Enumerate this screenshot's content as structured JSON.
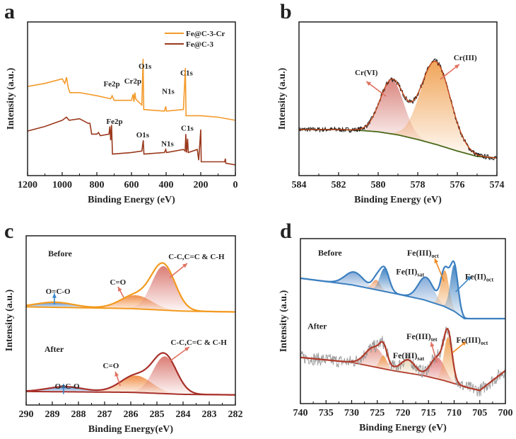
{
  "chart_data": [
    {
      "panel": "a",
      "type": "line",
      "xlabel": "Binding Energy (eV)",
      "ylabel": "Intensity (a.u.)",
      "xlim": [
        1200,
        0
      ],
      "ylim": [
        0,
        100
      ],
      "xticks": [
        1200,
        1000,
        800,
        600,
        400,
        200,
        0
      ],
      "grid": false,
      "legend": {
        "placement": "top-right"
      },
      "series": [
        {
          "name": "Fe@C-3-Cr",
          "color": "#f39a2a",
          "points": [
            [
              1200,
              58
            ],
            [
              1100,
              60
            ],
            [
              1000,
              63
            ],
            [
              985,
              60
            ],
            [
              975,
              64
            ],
            [
              965,
              57
            ],
            [
              955,
              54
            ],
            [
              900,
              54
            ],
            [
              800,
              52
            ],
            [
              720,
              50
            ],
            [
              712,
              52
            ],
            [
              700,
              49
            ],
            [
              600,
              49
            ],
            [
              590,
              53
            ],
            [
              586,
              48
            ],
            [
              580,
              54
            ],
            [
              576,
              50
            ],
            [
              560,
              48
            ],
            [
              540,
              46
            ],
            [
              533,
              76
            ],
            [
              529,
              43
            ],
            [
              410,
              42
            ],
            [
              402,
              45
            ],
            [
              398,
              42
            ],
            [
              300,
              43
            ],
            [
              289,
              70
            ],
            [
              285,
              39
            ],
            [
              200,
              39
            ],
            [
              100,
              38
            ],
            [
              0,
              36
            ]
          ]
        },
        {
          "name": "Fe@C-3",
          "color": "#9b3a1e",
          "points": [
            [
              1200,
              29
            ],
            [
              1100,
              32
            ],
            [
              1000,
              36
            ],
            [
              975,
              38
            ],
            [
              960,
              36
            ],
            [
              900,
              37
            ],
            [
              850,
              34
            ],
            [
              840,
              34
            ],
            [
              830,
              27
            ],
            [
              800,
              27
            ],
            [
              790,
              28
            ],
            [
              780,
              26
            ],
            [
              730,
              27
            ],
            [
              725,
              32
            ],
            [
              720,
              23
            ],
            [
              715,
              33
            ],
            [
              710,
              14
            ],
            [
              600,
              15
            ],
            [
              540,
              16
            ],
            [
              532,
              23
            ],
            [
              528,
              14
            ],
            [
              410,
              15
            ],
            [
              402,
              17
            ],
            [
              398,
              15
            ],
            [
              300,
              17
            ],
            [
              290,
              16
            ],
            [
              286,
              27
            ],
            [
              282,
              15
            ],
            [
              276,
              24
            ],
            [
              272,
              15
            ],
            [
              220,
              17
            ],
            [
              212,
              10
            ],
            [
              200,
              30
            ],
            [
              197,
              9
            ],
            [
              100,
              9
            ],
            [
              62,
              9
            ],
            [
              58,
              11
            ],
            [
              55,
              8
            ],
            [
              0,
              7
            ]
          ]
        }
      ],
      "annotations": [
        {
          "text": "Fe2p",
          "x": 714,
          "y": 60
        },
        {
          "text": "Cr2p",
          "x": 592,
          "y": 61.7
        },
        {
          "text": "O1s",
          "x": 522,
          "y": 71.4
        },
        {
          "text": "N1s",
          "x": 388,
          "y": 55
        },
        {
          "text": "C1s",
          "x": 282,
          "y": 67
        },
        {
          "text": "Fe2p",
          "x": 698,
          "y": 35.5
        },
        {
          "text": "O1s",
          "x": 535,
          "y": 26.7
        },
        {
          "text": "N1s",
          "x": 392,
          "y": 21
        },
        {
          "text": "C1s",
          "x": 278,
          "y": 31
        }
      ]
    },
    {
      "panel": "b",
      "type": "area",
      "xlabel": "Binding Energy (eV)",
      "ylabel": "Intensity (a.u.)",
      "xlim": [
        584,
        574
      ],
      "ylim": [
        0,
        100
      ],
      "xticks": [
        584,
        582,
        580,
        578,
        576,
        574
      ],
      "grid": false,
      "curves": [
        {
          "envelope_color": "#c0461c",
          "raw_color": "#111111",
          "raw_noise": 1.6,
          "baseline_color": "#4a6a1a",
          "baseline": [
            [
              584,
              30
            ],
            [
              582,
              30
            ],
            [
              581,
              29.5
            ],
            [
              580,
              28.5
            ],
            [
              579,
              26.5
            ],
            [
              578,
              23.5
            ],
            [
              577,
              20
            ],
            [
              576,
              16
            ],
            [
              575,
              12.5
            ],
            [
              574,
              11.5
            ]
          ],
          "components": [
            {
              "center": 579.3,
              "height": 35,
              "sigma": 0.6,
              "color": "#d9827a"
            },
            {
              "center": 577.1,
              "height": 54,
              "sigma": 0.75,
              "color": "#f0a050"
            }
          ]
        }
      ],
      "annotations": [
        {
          "text": "Cr(VI)",
          "x": 580.6,
          "y": 67.3,
          "arrow": {
            "from": [
              579.6,
              51.6
            ],
            "to": [
              580.6,
              61.3
            ],
            "color": "#e07060"
          }
        },
        {
          "text": "Cr(III)",
          "x": 575.6,
          "y": 77,
          "arrow": {
            "from": [
              576.86,
              62.7
            ],
            "to": [
              575.9,
              72.4
            ],
            "color": "#e07060"
          }
        }
      ]
    },
    {
      "panel": "c",
      "type": "area",
      "xlabel": "Binding Energy(eV)",
      "ylabel": "Intensity (a.u.)",
      "xlim": [
        290,
        282
      ],
      "ylim": [
        0,
        100
      ],
      "xticks": [
        290,
        289,
        288,
        287,
        286,
        285,
        284,
        283,
        282
      ],
      "grid": false,
      "curves": [
        {
          "label": "Before",
          "label_pos": [
            289.16,
            89.5
          ],
          "envelope_color": "#f39a1e",
          "baseline_color": "#f39a1e",
          "baseline": [
            [
              290,
              58
            ],
            [
              286,
              57
            ],
            [
              284,
              55.5
            ],
            [
              282,
              55
            ]
          ],
          "components": [
            {
              "center": 288.9,
              "height": 3,
              "sigma": 0.7,
              "color": "#4f86c6"
            },
            {
              "center": 285.8,
              "height": 8,
              "sigma": 0.6,
              "color": "#f08a40"
            },
            {
              "center": 284.75,
              "height": 26,
              "sigma": 0.45,
              "color": "#d9766e"
            }
          ]
        },
        {
          "label": "After",
          "label_pos": [
            289.3,
            33
          ],
          "envelope_color": "#a8302a",
          "baseline_color": "#a8302a",
          "baseline": [
            [
              290,
              8
            ],
            [
              286,
              7.5
            ],
            [
              284,
              6.3
            ],
            [
              282,
              6
            ]
          ],
          "components": [
            {
              "center": 288.5,
              "height": 3,
              "sigma": 0.7,
              "color": "#4f86c6"
            },
            {
              "center": 285.8,
              "height": 10,
              "sigma": 0.6,
              "color": "#f08a40"
            },
            {
              "center": 284.7,
              "height": 22,
              "sigma": 0.45,
              "color": "#d9766e"
            }
          ]
        }
      ],
      "annotations": [
        {
          "text": "C-C,C=C & C-H",
          "x": 283.49,
          "y": 87.9,
          "arrow": {
            "from": [
              284.51,
              75.3
            ],
            "to": [
              283.84,
              83.7
            ],
            "color": "#e07060"
          }
        },
        {
          "text": "C=O",
          "x": 286.49,
          "y": 72.8,
          "arrow": {
            "from": [
              286.27,
              63.6
            ],
            "to": [
              286.49,
              69.9
            ],
            "color": "#e07060"
          }
        },
        {
          "text": "O=C-O",
          "x": 288.78,
          "y": 67.4,
          "arrow": {
            "from": [
              288.92,
              59.4
            ],
            "to": [
              288.92,
              66
            ],
            "color": "#3a86c8"
          }
        },
        {
          "text": "C-C,C=C & C-H",
          "x": 283.4,
          "y": 37.2,
          "arrow": {
            "from": [
              284.51,
              25.9
            ],
            "to": [
              283.76,
              34.3
            ],
            "color": "#e07060"
          }
        },
        {
          "text": "C=O",
          "x": 286.76,
          "y": 23.4,
          "arrow": {
            "from": [
              286.4,
              11.3
            ],
            "to": [
              286.59,
              19.7
            ],
            "color": "#e07060"
          }
        },
        {
          "text": "O=C-O",
          "x": 288.43,
          "y": 11.3,
          "arrow": {
            "from": [
              288.57,
              6.5
            ],
            "to": [
              288.57,
              12.5
            ],
            "color": "#3a86c8"
          }
        }
      ]
    },
    {
      "panel": "d",
      "type": "area",
      "xlabel": "Binding Energy (eV)",
      "ylabel": "Intensity (a.u.)",
      "xlim": [
        740,
        700
      ],
      "ylim": [
        0,
        100
      ],
      "xticks": [
        740,
        735,
        730,
        725,
        720,
        715,
        710,
        705,
        700
      ],
      "grid": false,
      "curves": [
        {
          "label": "Before",
          "label_pos": [
            736.55,
            91.4
          ],
          "envelope_color": "#3b7fc0",
          "baseline_color": "#3b7fc0",
          "baseline": [
            [
              740,
              76
            ],
            [
              730,
              72
            ],
            [
              722,
              67
            ],
            [
              716,
              63
            ],
            [
              712,
              59
            ],
            [
              710,
              56
            ],
            [
              708,
              51.5
            ],
            [
              700,
              51.5
            ]
          ],
          "components": [
            {
              "center": 729.5,
              "height": 8,
              "sigma": 1.8,
              "color": "#7fa6d6"
            },
            {
              "center": 725.2,
              "height": 6,
              "sigma": 0.8,
              "color": "#f0a070"
            },
            {
              "center": 723.6,
              "height": 14,
              "sigma": 0.9,
              "color": "#3b7fc0"
            },
            {
              "center": 715.5,
              "height": 14,
              "sigma": 1.5,
              "color": "#7fa6d6"
            },
            {
              "center": 711.8,
              "height": 22,
              "sigma": 0.8,
              "color": "#f0a050"
            },
            {
              "center": 710.0,
              "height": 28,
              "sigma": 0.75,
              "color": "#3b7fc0"
            }
          ]
        },
        {
          "label": "After",
          "label_pos": [
            738.6,
            47
          ],
          "envelope_color": "#b03a2a",
          "baseline_color": "#b03a2a",
          "raw_color": "#9a9a9a",
          "raw_noise": 4,
          "baseline": [
            [
              740,
              28
            ],
            [
              730,
              25
            ],
            [
              722,
              20
            ],
            [
              716,
              17
            ],
            [
              712,
              14
            ],
            [
              707,
              9.4
            ],
            [
              705,
              8
            ],
            [
              700,
              20
            ]
          ],
          "components": [
            {
              "center": 725.5,
              "height": 12,
              "sigma": 1.8,
              "color": "#e59a8e"
            },
            {
              "center": 723.8,
              "height": 8,
              "sigma": 0.7,
              "color": "#f0a050"
            },
            {
              "center": 719,
              "height": 8,
              "sigma": 1.4,
              "color": "#e8d6b8"
            },
            {
              "center": 713.2,
              "height": 13,
              "sigma": 1.4,
              "color": "#e07a7a"
            },
            {
              "center": 711.2,
              "height": 27,
              "sigma": 0.8,
              "color": "#f0a050"
            }
          ]
        }
      ],
      "annotations": [
        {
          "text": "Fe(III)",
          "sub": "oct",
          "x": 716.1,
          "y": 91.4,
          "arrow": {
            "from": [
              712,
              74.2
            ],
            "to": [
              713.8,
              88
            ],
            "color": "#f08a20"
          }
        },
        {
          "text": "Fe(II)",
          "sub": "sat",
          "x": 718.6,
          "y": 80
        },
        {
          "text": "Fe(II)",
          "sub": "oct",
          "x": 705.1,
          "y": 77,
          "arrow": {
            "from": [
              709.7,
              67.8
            ],
            "to": [
              706.6,
              77.3
            ],
            "color": "#3a86c8"
          }
        },
        {
          "text": "Fe(III)",
          "sub": "tet",
          "x": 716.3,
          "y": 40.8,
          "arrow": {
            "from": [
              713.4,
              24.9
            ],
            "to": [
              714.5,
              37.3
            ],
            "color": "#e07060"
          }
        },
        {
          "text": "Fe(III)",
          "sub": "oct",
          "x": 706.5,
          "y": 38.6,
          "arrow": {
            "from": [
              710.3,
              30.9
            ],
            "to": [
              707.6,
              37.8
            ],
            "color": "#f08a20"
          }
        },
        {
          "text": "Fe(III)",
          "sub": "sat",
          "x": 718.9,
          "y": 29.2
        }
      ]
    }
  ]
}
